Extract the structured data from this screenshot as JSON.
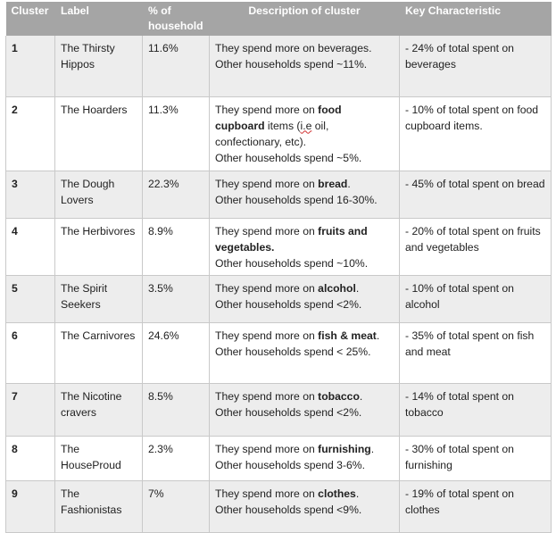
{
  "headers": {
    "cluster": "Cluster",
    "label": "Label",
    "pct_line1": "% of",
    "pct_line2": "household",
    "description": "Description of cluster",
    "key": "Key Characteristic"
  },
  "rows": [
    {
      "cluster": "1",
      "label": "The Thirsty Hippos",
      "pct": "11.6%",
      "desc_pre": "They spend more on beverages.",
      "desc_bold": "",
      "desc_post": "",
      "desc_other": "Other households spend ~11%.",
      "key": "- 24% of total spent on beverages"
    },
    {
      "cluster": "2",
      "label": "The Hoarders",
      "pct": "11.3%",
      "desc_pre": "They spend more on ",
      "desc_bold": "food cupboard",
      "desc_post": " items (",
      "desc_ie": "i.e",
      "desc_tail": " oil, confectionary, etc).",
      "desc_other": "Other households spend ~5%.",
      "key": "- 10% of total spent on food cupboard items."
    },
    {
      "cluster": "3",
      "label": "The Dough Lovers",
      "pct": "22.3%",
      "desc_pre": "They spend more on ",
      "desc_bold": "bread",
      "desc_post": ".",
      "desc_other": "Other households spend 16-30%.",
      "key": "- 45% of total spent on bread"
    },
    {
      "cluster": "4",
      "label": "The Herbivores",
      "pct": "8.9%",
      "desc_pre": "They spend more on ",
      "desc_bold": "fruits and vegetables.",
      "desc_post": "",
      "desc_other": "Other households spend ~10%.",
      "key": "- 20% of total spent on fruits and vegetables"
    },
    {
      "cluster": "5",
      "label": "The Spirit Seekers",
      "pct": "3.5%",
      "desc_pre": "They spend more on ",
      "desc_bold": "alcohol",
      "desc_post": ".",
      "desc_other": "Other households spend <2%.",
      "key": "- 10% of total spent on alcohol"
    },
    {
      "cluster": "6",
      "label": "The Carnivores",
      "pct": "24.6%",
      "desc_pre": "They spend more on ",
      "desc_bold": "fish & meat",
      "desc_post": ".",
      "desc_other": "Other households spend < 25%.",
      "key": "- 35% of total spent on fish and meat"
    },
    {
      "cluster": "7",
      "label": "The Nicotine cravers",
      "pct": "8.5%",
      "desc_pre": "They spend more on ",
      "desc_bold": "tobacco",
      "desc_post": ".",
      "desc_other": "Other households spend <2%.",
      "key": "- 14% of total spent on tobacco"
    },
    {
      "cluster": "8",
      "label": "The HouseProud",
      "pct": "2.3%",
      "desc_pre": "They spend more on ",
      "desc_bold": "furnishing",
      "desc_post": ".",
      "desc_other": "Other households spend 3-6%.",
      "key": "- 30% of total spent on furnishing"
    },
    {
      "cluster": "9",
      "label": "The Fashionistas",
      "pct": "7%",
      "desc_pre": "They spend more on ",
      "desc_bold": "clothes",
      "desc_post": ".",
      "desc_other": "Other households spend <9%.",
      "key": "- 19% of total spent on clothes"
    }
  ]
}
